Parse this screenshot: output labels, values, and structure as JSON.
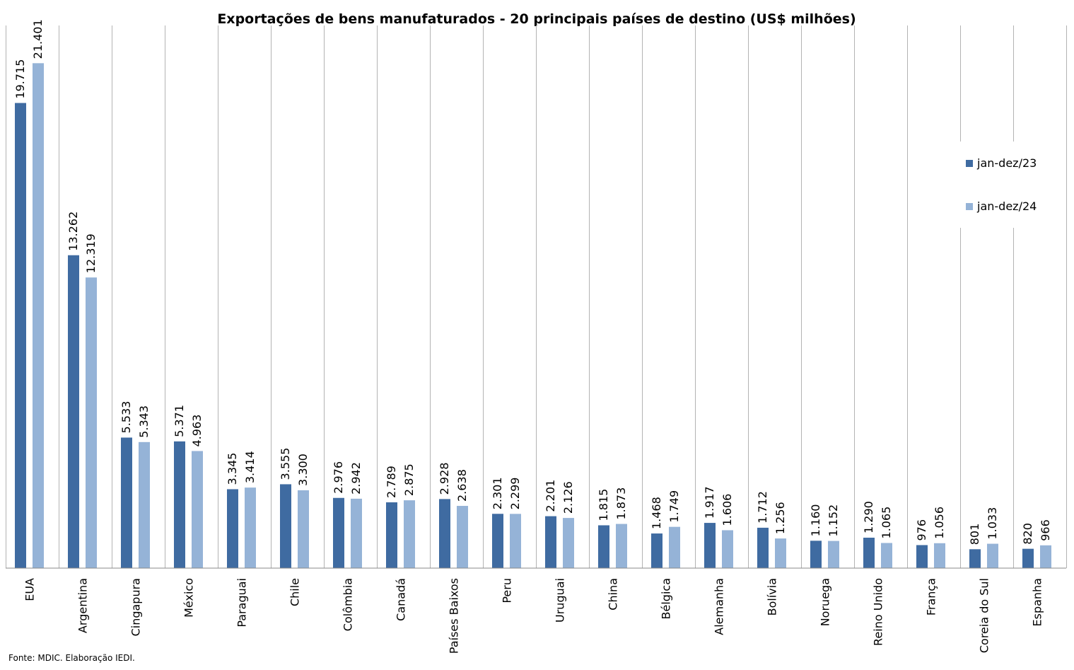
{
  "chart_data": {
    "type": "bar",
    "title": "Exportações de bens manufaturados - 20 principais países de destino (US$ milhões)",
    "categories": [
      "EUA",
      "Argentina",
      "Cingapura",
      "México",
      "Paraguai",
      "Chile",
      "Colômbia",
      "Canadá",
      "Países Baixos",
      "Peru",
      "Uruguai",
      "China",
      "Bélgica",
      "Alemanha",
      "Bolívia",
      "Noruega",
      "Reino Unido",
      "França",
      "Coreia do Sul",
      "Espanha"
    ],
    "series": [
      {
        "name": "jan-dez/23",
        "color": "#3f6ba1",
        "values": [
          19715,
          13262,
          5533,
          5371,
          3345,
          3555,
          2976,
          2789,
          2928,
          2301,
          2201,
          1815,
          1468,
          1917,
          1712,
          1160,
          1290,
          976,
          801,
          820
        ],
        "labels": [
          "19.715",
          "13.262",
          "5.533",
          "5.371",
          "3.345",
          "3.555",
          "2.976",
          "2.789",
          "2.928",
          "2.301",
          "2.201",
          "1.815",
          "1.468",
          "1.917",
          "1.712",
          "1.160",
          "1.290",
          "976",
          "801",
          "820"
        ]
      },
      {
        "name": "jan-dez/24",
        "color": "#95b3d7",
        "values": [
          21401,
          12319,
          5343,
          4963,
          3414,
          3300,
          2942,
          2875,
          2638,
          2299,
          2126,
          1873,
          1749,
          1606,
          1256,
          1152,
          1065,
          1056,
          1033,
          966
        ],
        "labels": [
          "21.401",
          "12.319",
          "5.343",
          "4.963",
          "3.414",
          "3.300",
          "2.942",
          "2.875",
          "2.638",
          "2.299",
          "2.126",
          "1.873",
          "1.749",
          "1.606",
          "1.256",
          "1.152",
          "1.065",
          "1.056",
          "1.033",
          "966"
        ]
      }
    ],
    "ylim": [
      0,
      23000
    ],
    "grid": "vertical-separators",
    "legend": "right"
  },
  "source_note": "Fonte: MDIC. Elaboração IEDI."
}
